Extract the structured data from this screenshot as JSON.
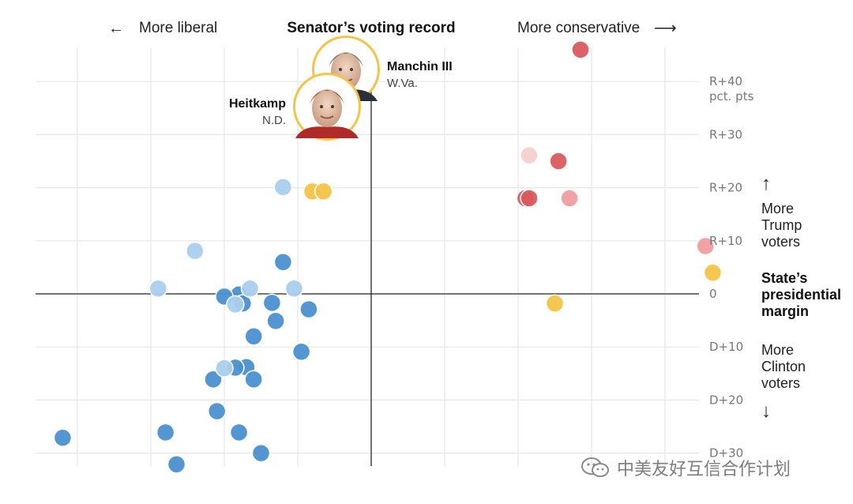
{
  "chart_data": {
    "type": "scatter",
    "title": "Senator’s voting record",
    "x_left_label": "More liberal",
    "x_right_label": "More conservative",
    "x_arrow_left": "←",
    "x_arrow_right": "⟶",
    "x_range": [
      -100,
      100
    ],
    "y_range": [
      -31,
      46
    ],
    "y_ticks": [
      {
        "value": 40,
        "label": "R+40"
      },
      {
        "value": 30,
        "label": "R+30"
      },
      {
        "value": 20,
        "label": "R+20"
      },
      {
        "value": 10,
        "label": "R+10"
      },
      {
        "value": 0,
        "label": "0"
      },
      {
        "value": -10,
        "label": "D+10"
      },
      {
        "value": -20,
        "label": "D+20"
      },
      {
        "value": -30,
        "label": "D+30"
      }
    ],
    "y_unit": "pct. pts",
    "y_label": {
      "line1": "State’s",
      "line2": "presidential",
      "line3": "margin"
    },
    "y_up": {
      "arrow": "↑",
      "line1": "More",
      "line2": "Trump",
      "line3": "voters"
    },
    "y_down": {
      "arrow": "↓",
      "line1": "More",
      "line2": "Clinton",
      "line3": "voters"
    },
    "colors": {
      "dem": "#4a90d0",
      "dem_light": "#a9cfee",
      "rep": "#da5a5e",
      "rep_light": "#ee9ea0",
      "rep_pale": "#f6cfd0",
      "ind": "#f2c447",
      "axis": "#222222",
      "grid": "#e6e6e6",
      "tick_text": "#777777"
    },
    "series": [
      {
        "color": "dem",
        "points": [
          [
            -24,
            6
          ],
          [
            -36,
            -0.1
          ],
          [
            -35,
            -1.8
          ],
          [
            -40,
            -0.5
          ],
          [
            -27,
            -1.7
          ],
          [
            -26,
            -5.1
          ],
          [
            -17,
            -2.9
          ],
          [
            -32,
            -8.0
          ],
          [
            -19,
            -10.9
          ],
          [
            -34,
            -13.8
          ],
          [
            -37,
            -13.9
          ],
          [
            -43,
            -16.1
          ],
          [
            -32,
            -16.1
          ],
          [
            -42,
            -22.1
          ],
          [
            -36,
            -26.1
          ],
          [
            -56,
            -26.1
          ],
          [
            -30,
            -30.0
          ],
          [
            -84,
            -27.1
          ],
          [
            -53,
            -32.1
          ]
        ]
      },
      {
        "color": "dem_light",
        "points": [
          [
            -24,
            20.1
          ],
          [
            -48,
            8.1
          ],
          [
            -58,
            1.0
          ],
          [
            -33,
            1.0
          ],
          [
            -21,
            1.0
          ],
          [
            -37,
            -2.0
          ],
          [
            -40,
            -14.0
          ]
        ]
      },
      {
        "color": "rep",
        "points": [
          [
            57,
            46
          ],
          [
            51,
            25.0
          ],
          [
            42,
            18.0
          ],
          [
            43,
            18.0
          ]
        ]
      },
      {
        "color": "rep_light",
        "points": [
          [
            54,
            18.0
          ],
          [
            91,
            9.0
          ]
        ]
      },
      {
        "color": "rep_pale",
        "points": [
          [
            43,
            26.1
          ]
        ]
      },
      {
        "color": "ind",
        "points": [
          [
            -16,
            19.3
          ],
          [
            -13,
            19.3
          ],
          [
            50,
            -1.8
          ],
          [
            93,
            4.0
          ]
        ]
      }
    ],
    "annotations": [
      {
        "name": "Manchin III",
        "state": "W.Va."
      },
      {
        "name": "Heitkamp",
        "state": "N.D."
      }
    ]
  },
  "watermark": "中美友好互信合作计划"
}
